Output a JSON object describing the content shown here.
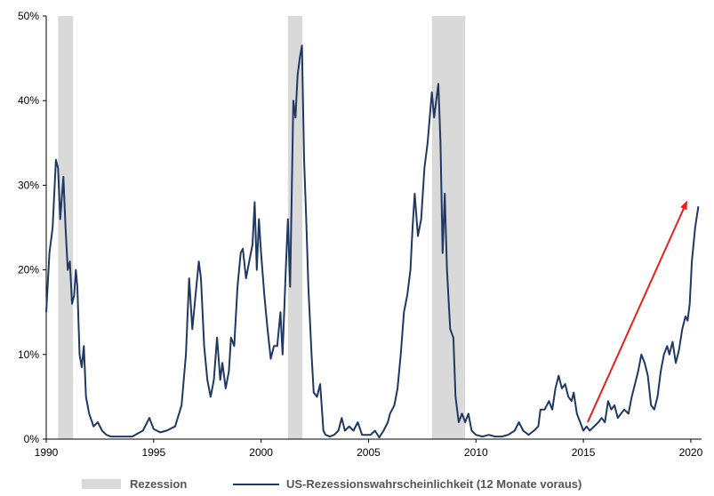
{
  "chart_data": {
    "type": "line",
    "title": "",
    "xlabel": "",
    "ylabel": "",
    "xlim": [
      1990,
      2020.5
    ],
    "ylim": [
      0,
      50
    ],
    "x_ticks": [
      "1990",
      "1995",
      "2000",
      "2005",
      "2010",
      "2015",
      "2020"
    ],
    "y_ticks": [
      "0%",
      "10%",
      "20%",
      "30%",
      "40%",
      "50%"
    ],
    "grid": false,
    "legend_position": "bottom",
    "colors": {
      "line": "#1f3864",
      "recession": "#d9d9d9",
      "arrow": "#e8201c"
    },
    "recessions": {
      "name": "Rezession",
      "periods": [
        [
          1990.55,
          1991.25
        ],
        [
          2001.25,
          2001.92
        ],
        [
          2007.95,
          2009.5
        ]
      ]
    },
    "series": [
      {
        "name": "US-Rezessionswahrscheinlichkeit (12 Monate voraus)",
        "points": [
          [
            1990.0,
            15
          ],
          [
            1990.15,
            22
          ],
          [
            1990.3,
            25
          ],
          [
            1990.45,
            33
          ],
          [
            1990.55,
            32
          ],
          [
            1990.65,
            26
          ],
          [
            1990.8,
            31
          ],
          [
            1990.9,
            25
          ],
          [
            1991.0,
            20
          ],
          [
            1991.1,
            21
          ],
          [
            1991.2,
            16
          ],
          [
            1991.3,
            17
          ],
          [
            1991.38,
            20
          ],
          [
            1991.45,
            18
          ],
          [
            1991.55,
            10
          ],
          [
            1991.65,
            8.5
          ],
          [
            1991.75,
            11
          ],
          [
            1991.85,
            5
          ],
          [
            1992.0,
            3
          ],
          [
            1992.2,
            1.5
          ],
          [
            1992.4,
            2
          ],
          [
            1992.6,
            1
          ],
          [
            1992.8,
            0.5
          ],
          [
            1993.0,
            0.3
          ],
          [
            1993.5,
            0.3
          ],
          [
            1994.0,
            0.3
          ],
          [
            1994.5,
            1
          ],
          [
            1994.8,
            2.5
          ],
          [
            1995.0,
            1.2
          ],
          [
            1995.3,
            0.8
          ],
          [
            1995.6,
            1
          ],
          [
            1996.0,
            1.5
          ],
          [
            1996.3,
            4
          ],
          [
            1996.5,
            10
          ],
          [
            1996.65,
            19
          ],
          [
            1996.8,
            13
          ],
          [
            1996.95,
            17
          ],
          [
            1997.1,
            21
          ],
          [
            1997.2,
            19
          ],
          [
            1997.35,
            11
          ],
          [
            1997.5,
            7
          ],
          [
            1997.65,
            5
          ],
          [
            1997.8,
            7
          ],
          [
            1997.95,
            12
          ],
          [
            1998.1,
            7
          ],
          [
            1998.2,
            9
          ],
          [
            1998.35,
            6
          ],
          [
            1998.5,
            8
          ],
          [
            1998.6,
            12
          ],
          [
            1998.75,
            11
          ],
          [
            1998.9,
            18
          ],
          [
            1999.05,
            22
          ],
          [
            1999.15,
            22.5
          ],
          [
            1999.3,
            19
          ],
          [
            1999.45,
            21
          ],
          [
            1999.6,
            23
          ],
          [
            1999.7,
            28
          ],
          [
            1999.8,
            20
          ],
          [
            1999.9,
            26
          ],
          [
            2000.0,
            22
          ],
          [
            2000.15,
            17
          ],
          [
            2000.3,
            13
          ],
          [
            2000.45,
            9.5
          ],
          [
            2000.6,
            11
          ],
          [
            2000.75,
            11
          ],
          [
            2000.9,
            15
          ],
          [
            2001.0,
            10
          ],
          [
            2001.15,
            20
          ],
          [
            2001.25,
            26
          ],
          [
            2001.35,
            18
          ],
          [
            2001.5,
            40
          ],
          [
            2001.6,
            38
          ],
          [
            2001.7,
            43
          ],
          [
            2001.8,
            45
          ],
          [
            2001.9,
            46.5
          ],
          [
            2002.0,
            33
          ],
          [
            2002.1,
            26
          ],
          [
            2002.2,
            18
          ],
          [
            2002.35,
            10
          ],
          [
            2002.45,
            5.5
          ],
          [
            2002.6,
            5
          ],
          [
            2002.75,
            6.5
          ],
          [
            2002.9,
            1
          ],
          [
            2003.0,
            0.5
          ],
          [
            2003.2,
            0.3
          ],
          [
            2003.4,
            0.5
          ],
          [
            2003.6,
            1
          ],
          [
            2003.75,
            2.5
          ],
          [
            2003.9,
            1
          ],
          [
            2004.1,
            1.5
          ],
          [
            2004.3,
            1
          ],
          [
            2004.5,
            2
          ],
          [
            2004.7,
            0.5
          ],
          [
            2004.9,
            0.5
          ],
          [
            2005.1,
            0.5
          ],
          [
            2005.3,
            1
          ],
          [
            2005.5,
            0.2
          ],
          [
            2005.7,
            1
          ],
          [
            2005.9,
            2
          ],
          [
            2006.0,
            3
          ],
          [
            2006.2,
            4
          ],
          [
            2006.35,
            6
          ],
          [
            2006.5,
            10
          ],
          [
            2006.65,
            15
          ],
          [
            2006.8,
            17
          ],
          [
            2006.95,
            20
          ],
          [
            2007.05,
            25
          ],
          [
            2007.15,
            29
          ],
          [
            2007.3,
            24
          ],
          [
            2007.45,
            26
          ],
          [
            2007.6,
            32
          ],
          [
            2007.75,
            35
          ],
          [
            2007.95,
            41
          ],
          [
            2008.05,
            38
          ],
          [
            2008.15,
            40
          ],
          [
            2008.25,
            42
          ],
          [
            2008.35,
            35
          ],
          [
            2008.45,
            22
          ],
          [
            2008.55,
            29
          ],
          [
            2008.65,
            20
          ],
          [
            2008.8,
            13
          ],
          [
            2008.95,
            12
          ],
          [
            2009.05,
            5
          ],
          [
            2009.2,
            2
          ],
          [
            2009.35,
            3
          ],
          [
            2009.5,
            2
          ],
          [
            2009.65,
            3
          ],
          [
            2009.8,
            1
          ],
          [
            2010.0,
            0.5
          ],
          [
            2010.3,
            0.3
          ],
          [
            2010.6,
            0.5
          ],
          [
            2010.9,
            0.3
          ],
          [
            2011.2,
            0.3
          ],
          [
            2011.5,
            0.5
          ],
          [
            2011.8,
            1
          ],
          [
            2012.0,
            2
          ],
          [
            2012.2,
            1
          ],
          [
            2012.45,
            0.5
          ],
          [
            2012.7,
            1
          ],
          [
            2012.9,
            1.5
          ],
          [
            2013.0,
            3.5
          ],
          [
            2013.2,
            3.5
          ],
          [
            2013.4,
            4.5
          ],
          [
            2013.55,
            3.5
          ],
          [
            2013.7,
            6
          ],
          [
            2013.85,
            7.5
          ],
          [
            2014.0,
            6
          ],
          [
            2014.15,
            6.5
          ],
          [
            2014.3,
            5
          ],
          [
            2014.45,
            4.5
          ],
          [
            2014.55,
            5.5
          ],
          [
            2014.7,
            3
          ],
          [
            2014.85,
            2
          ],
          [
            2015.0,
            1
          ],
          [
            2015.15,
            1.5
          ],
          [
            2015.3,
            1
          ],
          [
            2015.5,
            1.5
          ],
          [
            2015.7,
            2
          ],
          [
            2015.85,
            2.5
          ],
          [
            2016.0,
            2
          ],
          [
            2016.15,
            4.5
          ],
          [
            2016.3,
            3.5
          ],
          [
            2016.45,
            4
          ],
          [
            2016.6,
            2.5
          ],
          [
            2016.75,
            3
          ],
          [
            2016.9,
            3.5
          ],
          [
            2017.1,
            3
          ],
          [
            2017.25,
            5
          ],
          [
            2017.4,
            6.5
          ],
          [
            2017.55,
            8
          ],
          [
            2017.7,
            10
          ],
          [
            2017.85,
            9
          ],
          [
            2018.0,
            7.5
          ],
          [
            2018.15,
            4
          ],
          [
            2018.3,
            3.5
          ],
          [
            2018.45,
            5
          ],
          [
            2018.6,
            8
          ],
          [
            2018.75,
            10
          ],
          [
            2018.9,
            11
          ],
          [
            2019.0,
            10
          ],
          [
            2019.15,
            11.5
          ],
          [
            2019.3,
            9
          ],
          [
            2019.45,
            10.5
          ],
          [
            2019.6,
            13
          ],
          [
            2019.75,
            14.5
          ],
          [
            2019.85,
            14
          ],
          [
            2019.95,
            16
          ],
          [
            2020.05,
            21
          ],
          [
            2020.2,
            25
          ],
          [
            2020.35,
            27.5
          ]
        ]
      }
    ],
    "annotations": [
      {
        "type": "arrow",
        "from": [
          2015.2,
          2
        ],
        "to": [
          2019.8,
          28
        ]
      }
    ]
  },
  "legend": {
    "recession_label": "Rezession",
    "line_label": "US-Rezessionswahrscheinlichkeit (12 Monate voraus)"
  }
}
